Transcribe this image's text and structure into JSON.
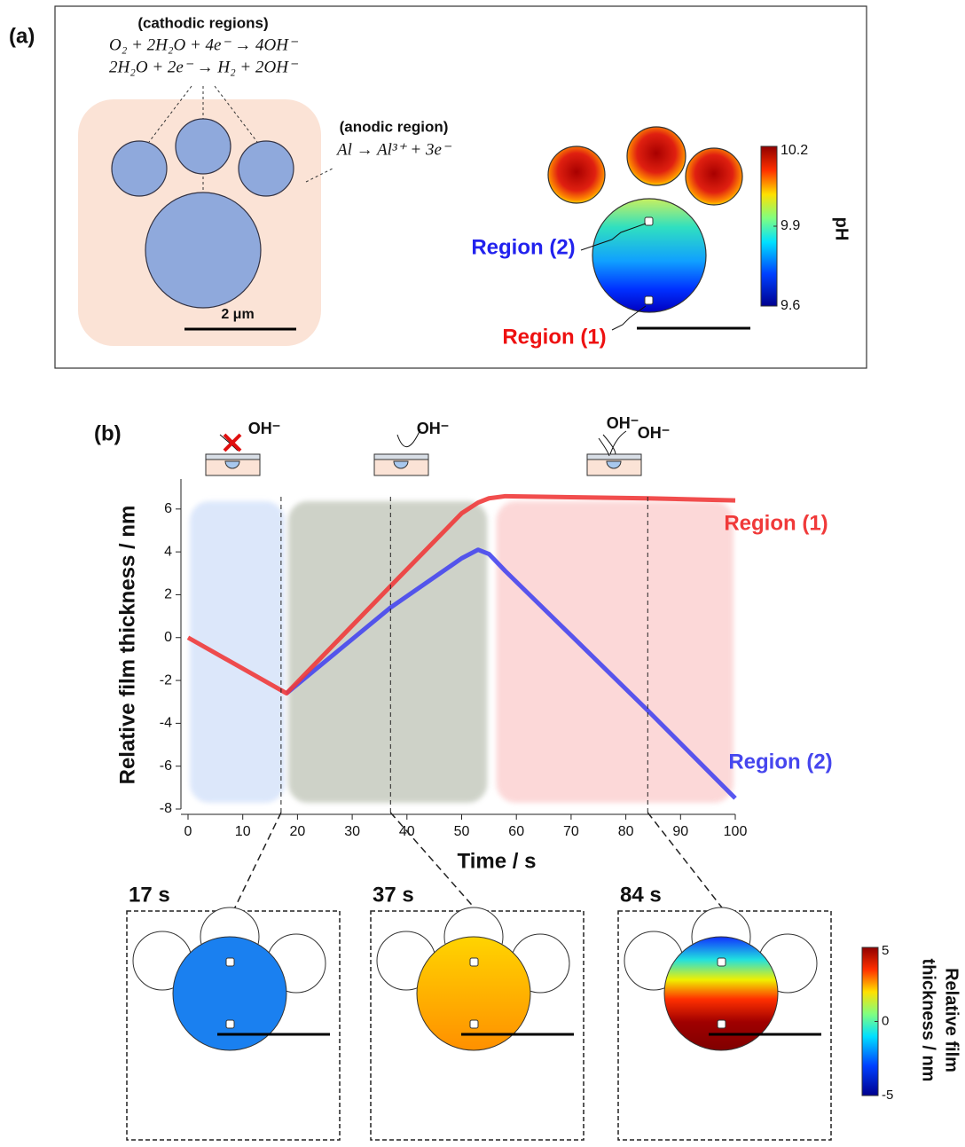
{
  "panel_a": {
    "label": "(a)",
    "cathodic_title": "(cathodic regions)",
    "equations": [
      "O₂ + 2H₂O + 4e⁻ → 4OH⁻",
      "2H₂O + 2e⁻ → H₂ + 2OH⁻"
    ],
    "anodic_title": "(anodic region)",
    "anodic_equation": "Al → Al³⁺ + 3e⁻",
    "scale_label": "2 μm",
    "region2": "Region (2)",
    "region1": "Region (1)",
    "colorbar": {
      "label": "pH",
      "lim": [
        9.6,
        10.2
      ],
      "ticks": [
        9.6,
        9.9,
        10.2
      ]
    }
  },
  "chart_data": {
    "type": "line",
    "panel_label": "(b)",
    "xlabel": "Time / s",
    "ylabel": "Relative film thickness / nm",
    "x": [
      0,
      18,
      37,
      50,
      53,
      55,
      58,
      70,
      84,
      100
    ],
    "series": [
      {
        "name": "Region (1)",
        "color": "#f03a3a",
        "values": [
          0,
          -2.6,
          2.4,
          5.8,
          6.3,
          6.5,
          6.6,
          6.55,
          6.5,
          6.4
        ]
      },
      {
        "name": "Region (2)",
        "color": "#4646ee",
        "values": [
          null,
          -2.6,
          1.4,
          3.7,
          4.1,
          3.9,
          3.1,
          0.1,
          -3.4,
          -7.5
        ]
      }
    ],
    "xlim": [
      0,
      100
    ],
    "xticks": [
      0,
      10,
      20,
      30,
      40,
      50,
      60,
      70,
      80,
      90,
      100
    ],
    "ylim": [
      -8,
      7.4
    ],
    "yticks": [
      -8,
      -6,
      -4,
      -2,
      0,
      2,
      4,
      6
    ],
    "spans": [
      {
        "start": 0,
        "end": 18,
        "color": "#d6e3fa"
      },
      {
        "start": 18,
        "end": 55,
        "color": "#c6cbbf"
      },
      {
        "start": 56,
        "end": 100,
        "color": "#fcd2d2"
      }
    ],
    "ion_labels": [
      "OH⁻",
      "OH⁻",
      "OH⁻",
      "OH⁻"
    ],
    "snapshots": [
      {
        "time": 17,
        "label": "17 s"
      },
      {
        "time": 37,
        "label": "37 s"
      },
      {
        "time": 84,
        "label": "84 s"
      }
    ],
    "colorbar": {
      "label_lines": [
        "Relative film",
        "thickness / nm"
      ],
      "lim": [
        -5,
        5
      ],
      "ticks": [
        -5,
        0,
        5
      ]
    }
  }
}
